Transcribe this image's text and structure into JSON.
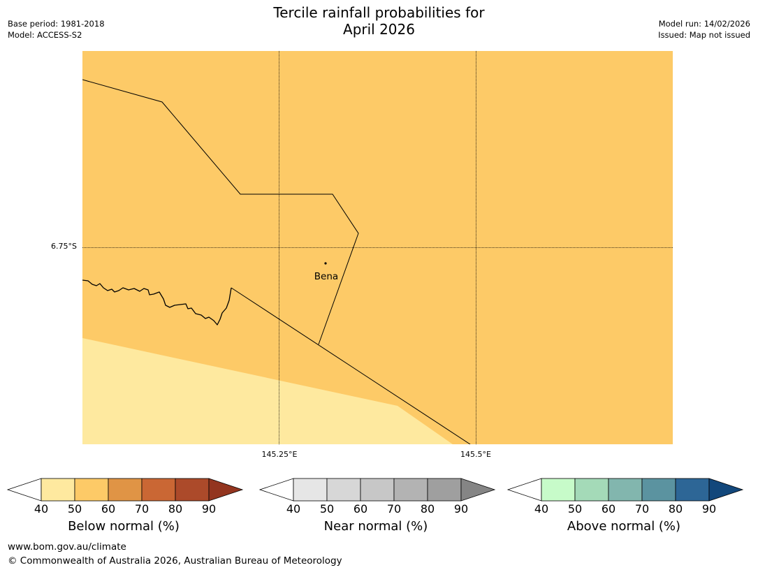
{
  "title": {
    "line1": "Tercile rainfall probabilities for",
    "line2": "April 2026"
  },
  "meta_left": {
    "base_period": "Base period: 1981-2018",
    "model": "Model: ACCESS-S2"
  },
  "meta_right": {
    "model_run": "Model run: 14/02/2026",
    "issued": "Issued: Map not issued"
  },
  "map": {
    "place_label": "Bena",
    "lat_label": "6.75°S",
    "lon_labels": [
      "145.25°E",
      "145.5°E"
    ],
    "colors": {
      "below_50": "#fdca67",
      "below_40": "#fee99f"
    }
  },
  "legends": [
    {
      "name": "below",
      "title": "Below normal (%)",
      "ticks": [
        "40",
        "50",
        "60",
        "70",
        "80",
        "90"
      ],
      "colors": [
        "#ffffff",
        "#fee99f",
        "#fdca67",
        "#e09445",
        "#ca6734",
        "#ac4a2a",
        "#93351f"
      ]
    },
    {
      "name": "near",
      "title": "Near normal (%)",
      "ticks": [
        "40",
        "50",
        "60",
        "70",
        "80",
        "90"
      ],
      "colors": [
        "#ffffff",
        "#e6e6e6",
        "#d7d7d7",
        "#c7c7c7",
        "#b3b3b3",
        "#9f9f9f",
        "#858585"
      ]
    },
    {
      "name": "above",
      "title": "Above normal (%)",
      "ticks": [
        "40",
        "50",
        "60",
        "70",
        "80",
        "90"
      ],
      "colors": [
        "#ffffff",
        "#c7fbc9",
        "#a4dab8",
        "#82b6ae",
        "#5b93a0",
        "#2d6696",
        "#12477b"
      ]
    }
  ],
  "footer": {
    "url": "www.bom.gov.au/climate",
    "copyright": "© Commonwealth of Australia 2026, Australian Bureau of Meteorology"
  }
}
